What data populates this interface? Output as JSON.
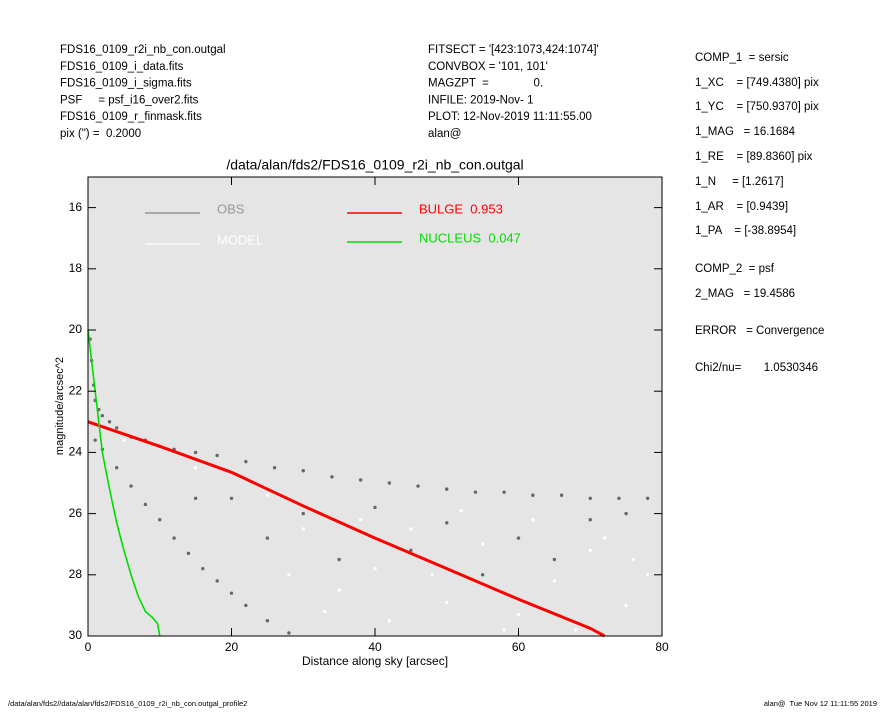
{
  "header_left": [
    "FDS16_0109_r2i_nb_con.outgal",
    "FDS16_0109_i_data.fits",
    "FDS16_0109_i_sigma.fits",
    "PSF     = psf_i16_over2.fits",
    "FDS16_0109_r_finmask.fits",
    "pix (\") =  0.2000"
  ],
  "header_middle": [
    "FITSECT = '[423:1073,424:1074]'",
    "CONVBOX = '101, 101'",
    "MAGZPT  =              0.",
    "INFILE: 2019-Nov- 1",
    "PLOT: 12-Nov-2019 11:11:55.00",
    "alan@"
  ],
  "parameters": [
    "COMP_1  = sersic",
    "1_XC    = [749.4380] pix",
    "1_YC    = [750.9370] pix",
    "1_MAG   = 16.1684",
    "1_RE    = [89.8360] pix",
    "1_N     = [1.2617]",
    "1_AR    = [0.9439]",
    "1_PA    = [-38.8954]",
    "COMP_2  = psf",
    "2_MAG   = 19.4586",
    "ERROR   = Convergence",
    "Chi2/nu=       1.0530346"
  ],
  "footer_left": "/data/alan/fds2//data/alan/fds2/FDS16_0109_r2i_nb_con.outgal_profile2",
  "footer_right": "alan@  Tue Nov 12 11:11:55 2019",
  "chart_data": {
    "type": "scatter",
    "title": "/data/alan/fds2/FDS16_0109_r2i_nb_con.outgal",
    "x_label": "Distance along sky [arcsec]",
    "y_label": "magnitude/arcsec^2",
    "xlim": [
      0,
      80
    ],
    "ylim": [
      15,
      30
    ],
    "y_inverted": true,
    "xticks": [
      0,
      20,
      40,
      60,
      80
    ],
    "yticks": [
      16,
      18,
      20,
      22,
      24,
      26,
      28,
      30
    ],
    "background": "#e5e5e5",
    "series": [
      {
        "name": "OBS",
        "color": "#666666",
        "style": "points",
        "x": [
          0.3,
          0.5,
          0.8,
          1,
          1.5,
          2,
          3,
          4,
          6,
          8,
          10,
          12,
          15,
          18,
          22,
          26,
          30,
          34,
          38,
          42,
          46,
          50,
          54,
          58,
          62,
          66,
          70,
          74,
          78,
          1,
          2,
          4,
          6,
          8,
          10,
          12,
          14,
          16,
          18,
          20,
          22,
          25,
          28,
          20,
          30,
          40,
          50,
          60,
          70,
          35,
          45,
          55,
          65,
          25,
          75,
          15
        ],
        "values": [
          20.3,
          21,
          21.8,
          22.3,
          22.6,
          22.8,
          23.0,
          23.2,
          23.5,
          23.6,
          23.8,
          23.9,
          24.0,
          24.1,
          24.3,
          24.5,
          24.6,
          24.8,
          24.9,
          25.0,
          25.1,
          25.2,
          25.3,
          25.3,
          25.4,
          25.4,
          25.5,
          25.5,
          25.5,
          23.6,
          23.9,
          24.5,
          25.1,
          25.7,
          26.2,
          26.8,
          27.3,
          27.8,
          28.2,
          28.6,
          29.0,
          29.5,
          29.9,
          25.5,
          26.0,
          25.8,
          26.3,
          26.8,
          26.2,
          27.5,
          27.2,
          28.0,
          27.5,
          26.8,
          26.0,
          25.5
        ]
      },
      {
        "name": "MODEL",
        "color": "#ffffff",
        "style": "points",
        "x": [
          5,
          15,
          25,
          30,
          35,
          40,
          45,
          50,
          55,
          60,
          65,
          70,
          75,
          78,
          42,
          52,
          62,
          68,
          72,
          76,
          38,
          58,
          48,
          33,
          28
        ],
        "values": [
          23.6,
          24.5,
          25.4,
          26.5,
          28.5,
          27.8,
          26.5,
          28.9,
          27.0,
          29.3,
          28.2,
          27.2,
          29.0,
          28.0,
          29.5,
          25.9,
          26.2,
          29.8,
          26.8,
          27.5,
          26.2,
          29.8,
          28.0,
          29.2,
          28.0
        ]
      },
      {
        "name": "BULGE  0.953",
        "color": "#ff0000",
        "style": "line",
        "x": [
          0,
          5,
          10,
          20,
          30,
          40,
          50,
          60,
          70,
          72
        ],
        "values": [
          23.0,
          23.4,
          23.8,
          24.65,
          25.75,
          26.8,
          27.8,
          28.8,
          29.75,
          30
        ]
      },
      {
        "name": "NUCLEUS  0.047",
        "color": "#00dd00",
        "style": "line",
        "x": [
          0,
          0.5,
          1,
          1.5,
          2,
          3,
          4,
          5,
          6,
          7,
          8,
          9,
          9.7,
          10
        ],
        "values": [
          20.0,
          21.0,
          22.0,
          23.0,
          24.0,
          25.2,
          26.3,
          27.2,
          28.0,
          28.7,
          29.2,
          29.4,
          29.6,
          30
        ]
      }
    ]
  }
}
